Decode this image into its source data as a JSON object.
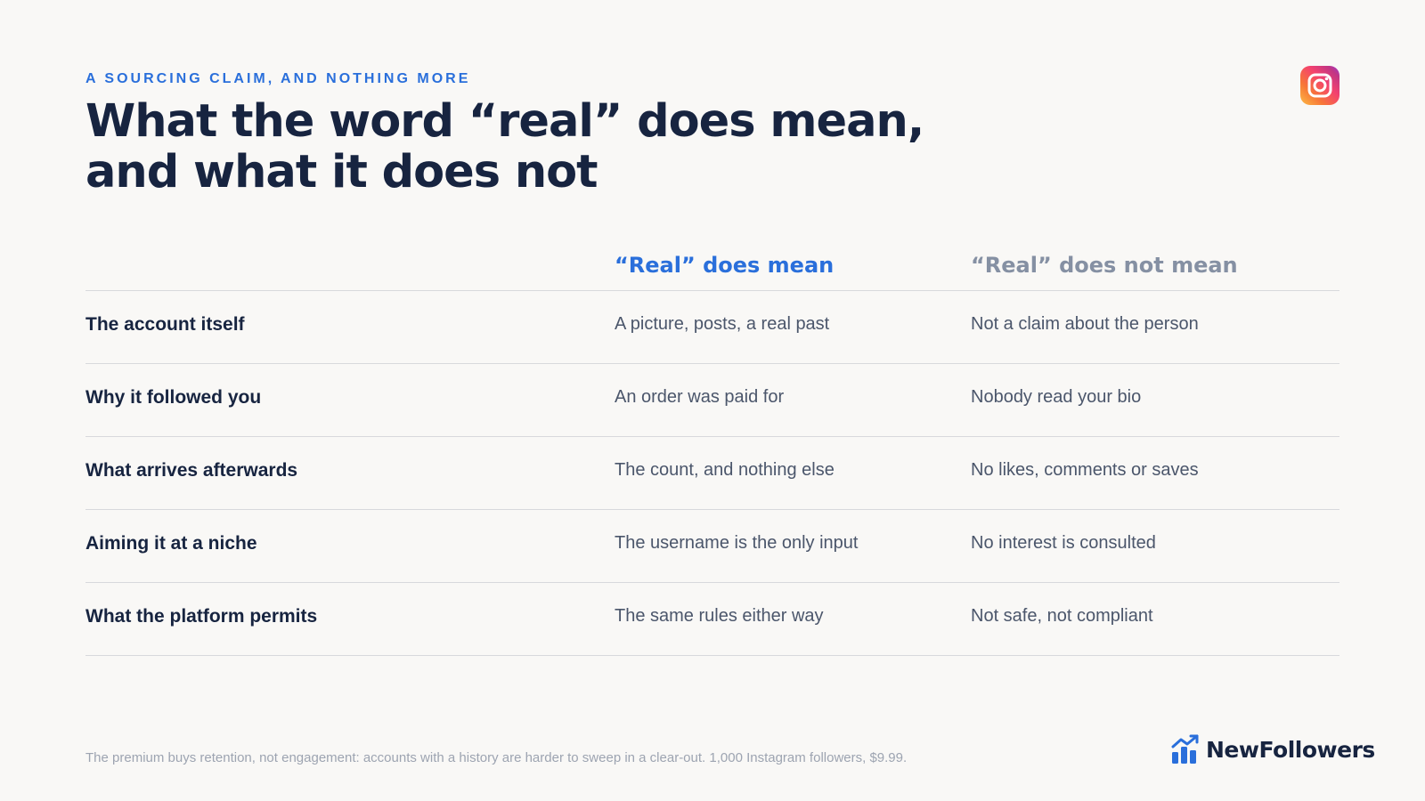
{
  "header": {
    "eyebrow": "A SOURCING CLAIM, AND NOTHING MORE",
    "title_line1": "What the word “real” does mean,",
    "title_line2": "and what it does not"
  },
  "table": {
    "columns": {
      "does": "“Real” does mean",
      "does_not": "“Real” does not mean"
    },
    "rows": [
      {
        "label": "The account itself",
        "does": "A picture, posts, a real past",
        "does_not": "Not a claim about the person"
      },
      {
        "label": "Why it followed you",
        "does": "An order was paid for",
        "does_not": "Nobody read your bio"
      },
      {
        "label": "What arrives afterwards",
        "does": "The count, and nothing else",
        "does_not": "No likes, comments or saves"
      },
      {
        "label": "Aiming it at a niche",
        "does": "The username is the only input",
        "does_not": "No interest is consulted"
      },
      {
        "label": "What the platform permits",
        "does": "The same rules either way",
        "does_not": "Not safe, not compliant"
      }
    ]
  },
  "footnote": "The premium buys retention, not engagement: accounts with a history are harder to sweep in a clear-out. 1,000 Instagram followers, $9.99.",
  "brand": {
    "name": "NewFollowers",
    "icon": "bar-chart-arrow-icon",
    "color": "#2a6fdb"
  },
  "icons": {
    "platform": "instagram-icon"
  },
  "colors": {
    "accent": "#2a6fdb",
    "ink": "#172440",
    "muted": "#8590a3",
    "background": "#f9f8f6"
  }
}
